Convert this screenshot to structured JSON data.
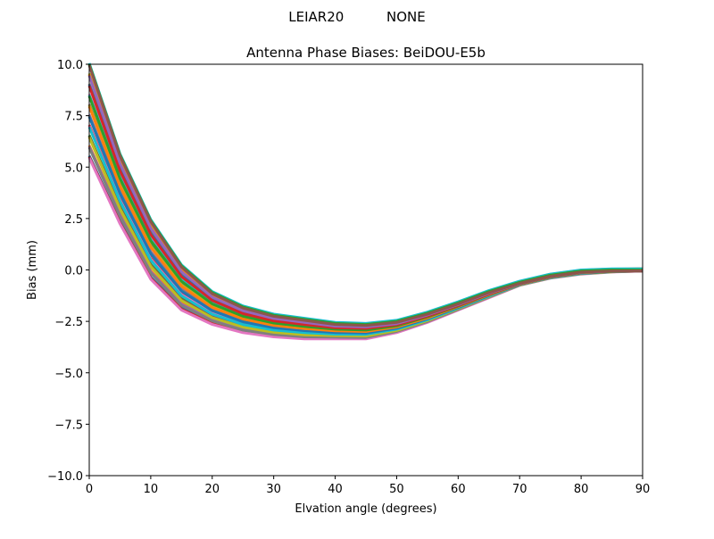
{
  "figure_title": "LEIAR20          NONE",
  "chart_data": {
    "type": "line",
    "title": "Antenna Phase Biases: BeiDOU-E5b",
    "xlabel": "Elvation angle (degrees)",
    "ylabel": "Bias (mm)",
    "xlim": [
      0,
      90
    ],
    "ylim": [
      -10,
      10
    ],
    "xticks": [
      0,
      10,
      20,
      30,
      40,
      50,
      60,
      70,
      80,
      90
    ],
    "yticks": [
      -10.0,
      -7.5,
      -5.0,
      -2.5,
      0.0,
      2.5,
      5.0,
      7.5,
      10.0
    ],
    "ytick_labels": [
      "−10.0",
      "−7.5",
      "−5.0",
      "−2.5",
      "0.0",
      "2.5",
      "5.0",
      "7.5",
      "10.0"
    ],
    "grid": false,
    "colors": [
      "#1f77b4",
      "#ff7f0e",
      "#2ca02c",
      "#d62728",
      "#9467bd",
      "#8c564b",
      "#e377c2",
      "#7f7f7f",
      "#bcbd22",
      "#17becf"
    ],
    "x": [
      0,
      5,
      10,
      15,
      20,
      25,
      30,
      35,
      40,
      45,
      50,
      55,
      60,
      65,
      70,
      75,
      80,
      85,
      90
    ],
    "series": [
      {
        "values": [
          5.5,
          2.3,
          -0.4,
          -1.9,
          -2.6,
          -3.0,
          -3.2,
          -3.3,
          -3.3,
          -3.3,
          -3.0,
          -2.5,
          -1.9,
          -1.3,
          -0.7,
          -0.35,
          -0.15,
          -0.05,
          0
        ]
      },
      {
        "values": [
          6.0,
          2.67,
          -0.09,
          -1.67,
          -2.43,
          -2.87,
          -3.09,
          -3.2,
          -3.22,
          -3.23,
          -2.94,
          -2.46,
          -1.87,
          -1.27,
          -0.69,
          -0.34,
          -0.14,
          -0.04,
          0
        ]
      },
      {
        "values": [
          6.5,
          3.03,
          0.22,
          -1.43,
          -2.27,
          -2.73,
          -2.98,
          -3.1,
          -3.14,
          -3.16,
          -2.89,
          -2.41,
          -1.83,
          -1.24,
          -0.68,
          -0.33,
          -0.13,
          -0.04,
          0
        ]
      },
      {
        "values": [
          7.0,
          3.4,
          0.53,
          -1.2,
          -2.1,
          -2.6,
          -2.87,
          -3.0,
          -3.07,
          -3.08,
          -2.83,
          -2.37,
          -1.8,
          -1.22,
          -0.67,
          -0.32,
          -0.12,
          -0.03,
          0
        ]
      },
      {
        "values": [
          7.5,
          3.77,
          0.84,
          -0.97,
          -1.93,
          -2.47,
          -2.76,
          -2.9,
          -2.99,
          -3.01,
          -2.78,
          -2.32,
          -1.77,
          -1.19,
          -0.66,
          -0.31,
          -0.11,
          -0.03,
          0
        ]
      },
      {
        "values": [
          8.0,
          4.13,
          1.16,
          -0.73,
          -1.77,
          -2.33,
          -2.64,
          -2.8,
          -2.91,
          -2.94,
          -2.72,
          -2.28,
          -1.73,
          -1.16,
          -0.64,
          -0.29,
          -0.09,
          -0.02,
          0
        ]
      },
      {
        "values": [
          8.5,
          4.5,
          1.47,
          -0.5,
          -1.6,
          -2.2,
          -2.53,
          -2.7,
          -2.83,
          -2.87,
          -2.67,
          -2.23,
          -1.7,
          -1.13,
          -0.63,
          -0.28,
          -0.08,
          -0.02,
          0
        ]
      },
      {
        "values": [
          9.0,
          4.87,
          1.78,
          -0.27,
          -1.43,
          -2.07,
          -2.42,
          -2.6,
          -2.76,
          -2.79,
          -2.61,
          -2.19,
          -1.67,
          -1.11,
          -0.62,
          -0.27,
          -0.07,
          -0.01,
          0
        ]
      },
      {
        "values": [
          9.5,
          5.23,
          2.09,
          -0.03,
          -1.27,
          -1.93,
          -2.31,
          -2.5,
          -2.68,
          -2.72,
          -2.56,
          -2.14,
          -1.63,
          -1.08,
          -0.61,
          -0.26,
          -0.06,
          -0.01,
          0
        ]
      },
      {
        "values": [
          10.0,
          5.6,
          2.4,
          0.2,
          -1.1,
          -1.8,
          -2.2,
          -2.4,
          -2.6,
          -2.65,
          -2.5,
          -2.1,
          -1.6,
          -1.05,
          -0.6,
          -0.25,
          -0.05,
          0,
          0
        ]
      }
    ]
  }
}
